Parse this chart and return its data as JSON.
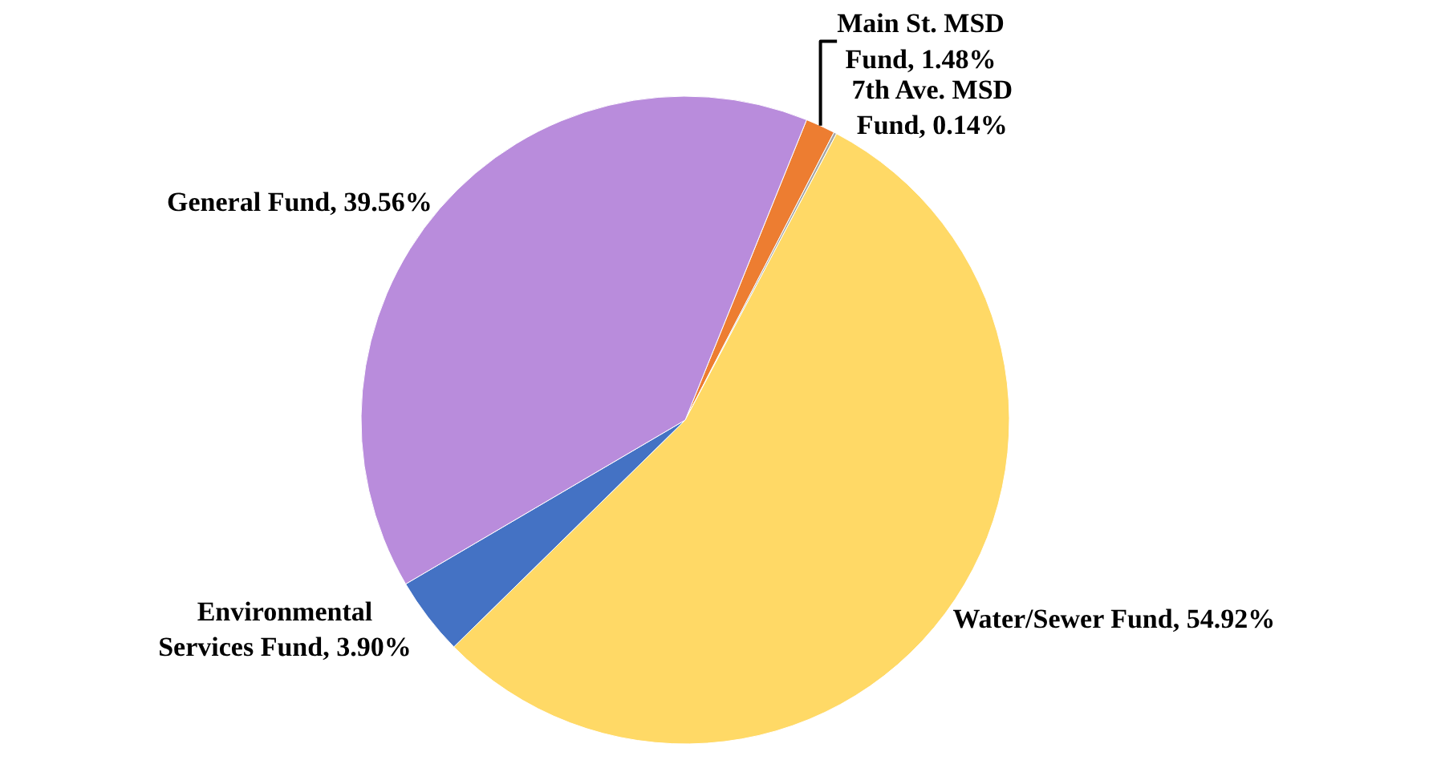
{
  "chart_data": {
    "type": "pie",
    "categories": [
      "Main St. MSD Fund",
      "7th Ave. MSD Fund",
      "Water/Sewer Fund",
      "Environmental Services Fund",
      "General Fund"
    ],
    "values": [
      1.48,
      0.14,
      54.92,
      3.9,
      39.56
    ],
    "colors": [
      "#ed7d31",
      "#a5a5a5",
      "#ffd966",
      "#4472c4",
      "#b98cdc"
    ],
    "value_labels": [
      "1.48%",
      "0.14%",
      "54.92%",
      "3.90%",
      "39.56%"
    ],
    "legend": false
  }
}
